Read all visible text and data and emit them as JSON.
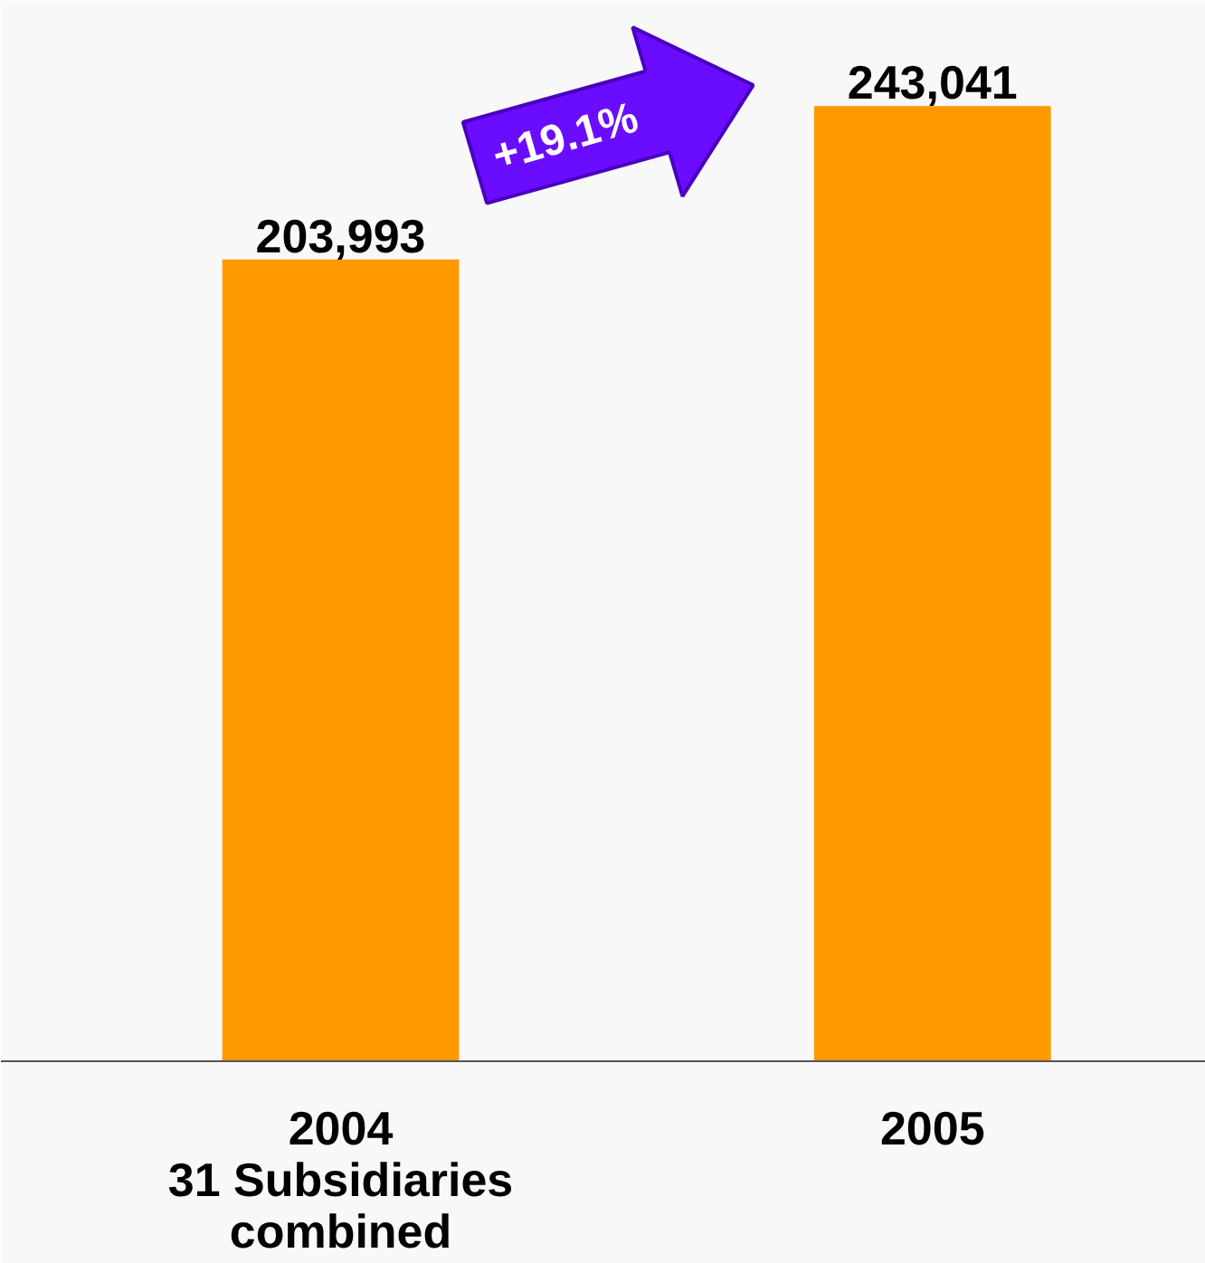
{
  "chart_data": {
    "type": "bar",
    "categories": [
      "2004\n31 Subsidiaries\ncombined",
      "2005"
    ],
    "values": [
      203993,
      243041
    ],
    "color": "#ff9900",
    "value_labels": [
      "203,993",
      "243,041"
    ],
    "grid": false,
    "annotations": [
      "+19.1%"
    ]
  }
}
